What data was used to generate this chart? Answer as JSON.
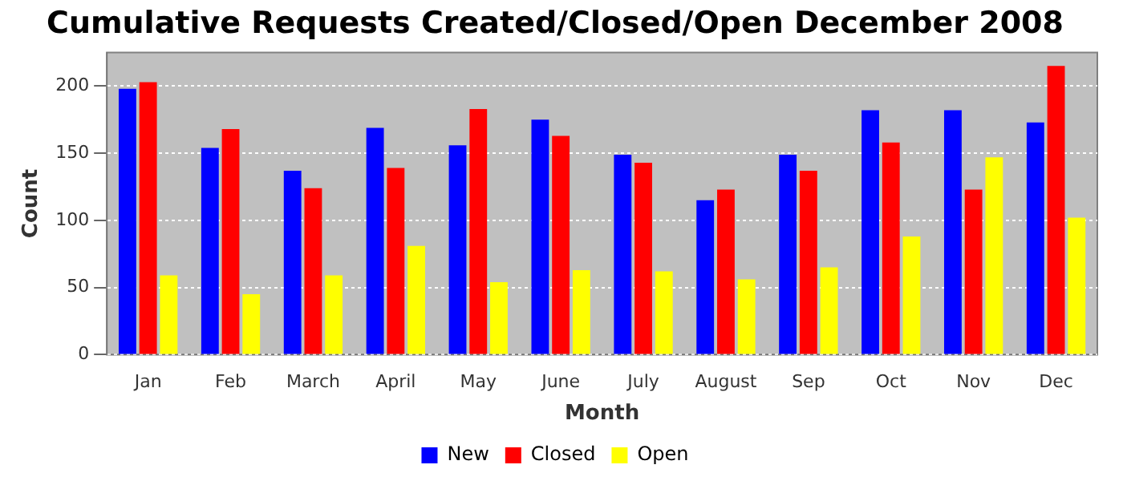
{
  "chart_data": {
    "type": "bar",
    "title": "Cumulative Requests Created/Closed/Open December 2008",
    "xlabel": "Month",
    "ylabel": "Count",
    "categories": [
      "Jan",
      "Feb",
      "March",
      "April",
      "May",
      "June",
      "July",
      "August",
      "Sep",
      "Oct",
      "Nov",
      "Dec"
    ],
    "series": [
      {
        "name": "New",
        "color": "#0000ff",
        "values": [
          198,
          154,
          137,
          169,
          156,
          175,
          149,
          115,
          149,
          182,
          182,
          173
        ]
      },
      {
        "name": "Closed",
        "color": "#ff0000",
        "values": [
          203,
          168,
          124,
          139,
          183,
          163,
          143,
          123,
          137,
          158,
          123,
          215
        ]
      },
      {
        "name": "Open",
        "color": "#ffff00",
        "values": [
          59,
          45,
          59,
          81,
          54,
          63,
          62,
          56,
          65,
          88,
          147,
          102
        ]
      }
    ],
    "ylim": [
      0,
      225
    ],
    "yticks": [
      0,
      50,
      100,
      150,
      200
    ],
    "grid": "y",
    "legend": "bottom"
  }
}
